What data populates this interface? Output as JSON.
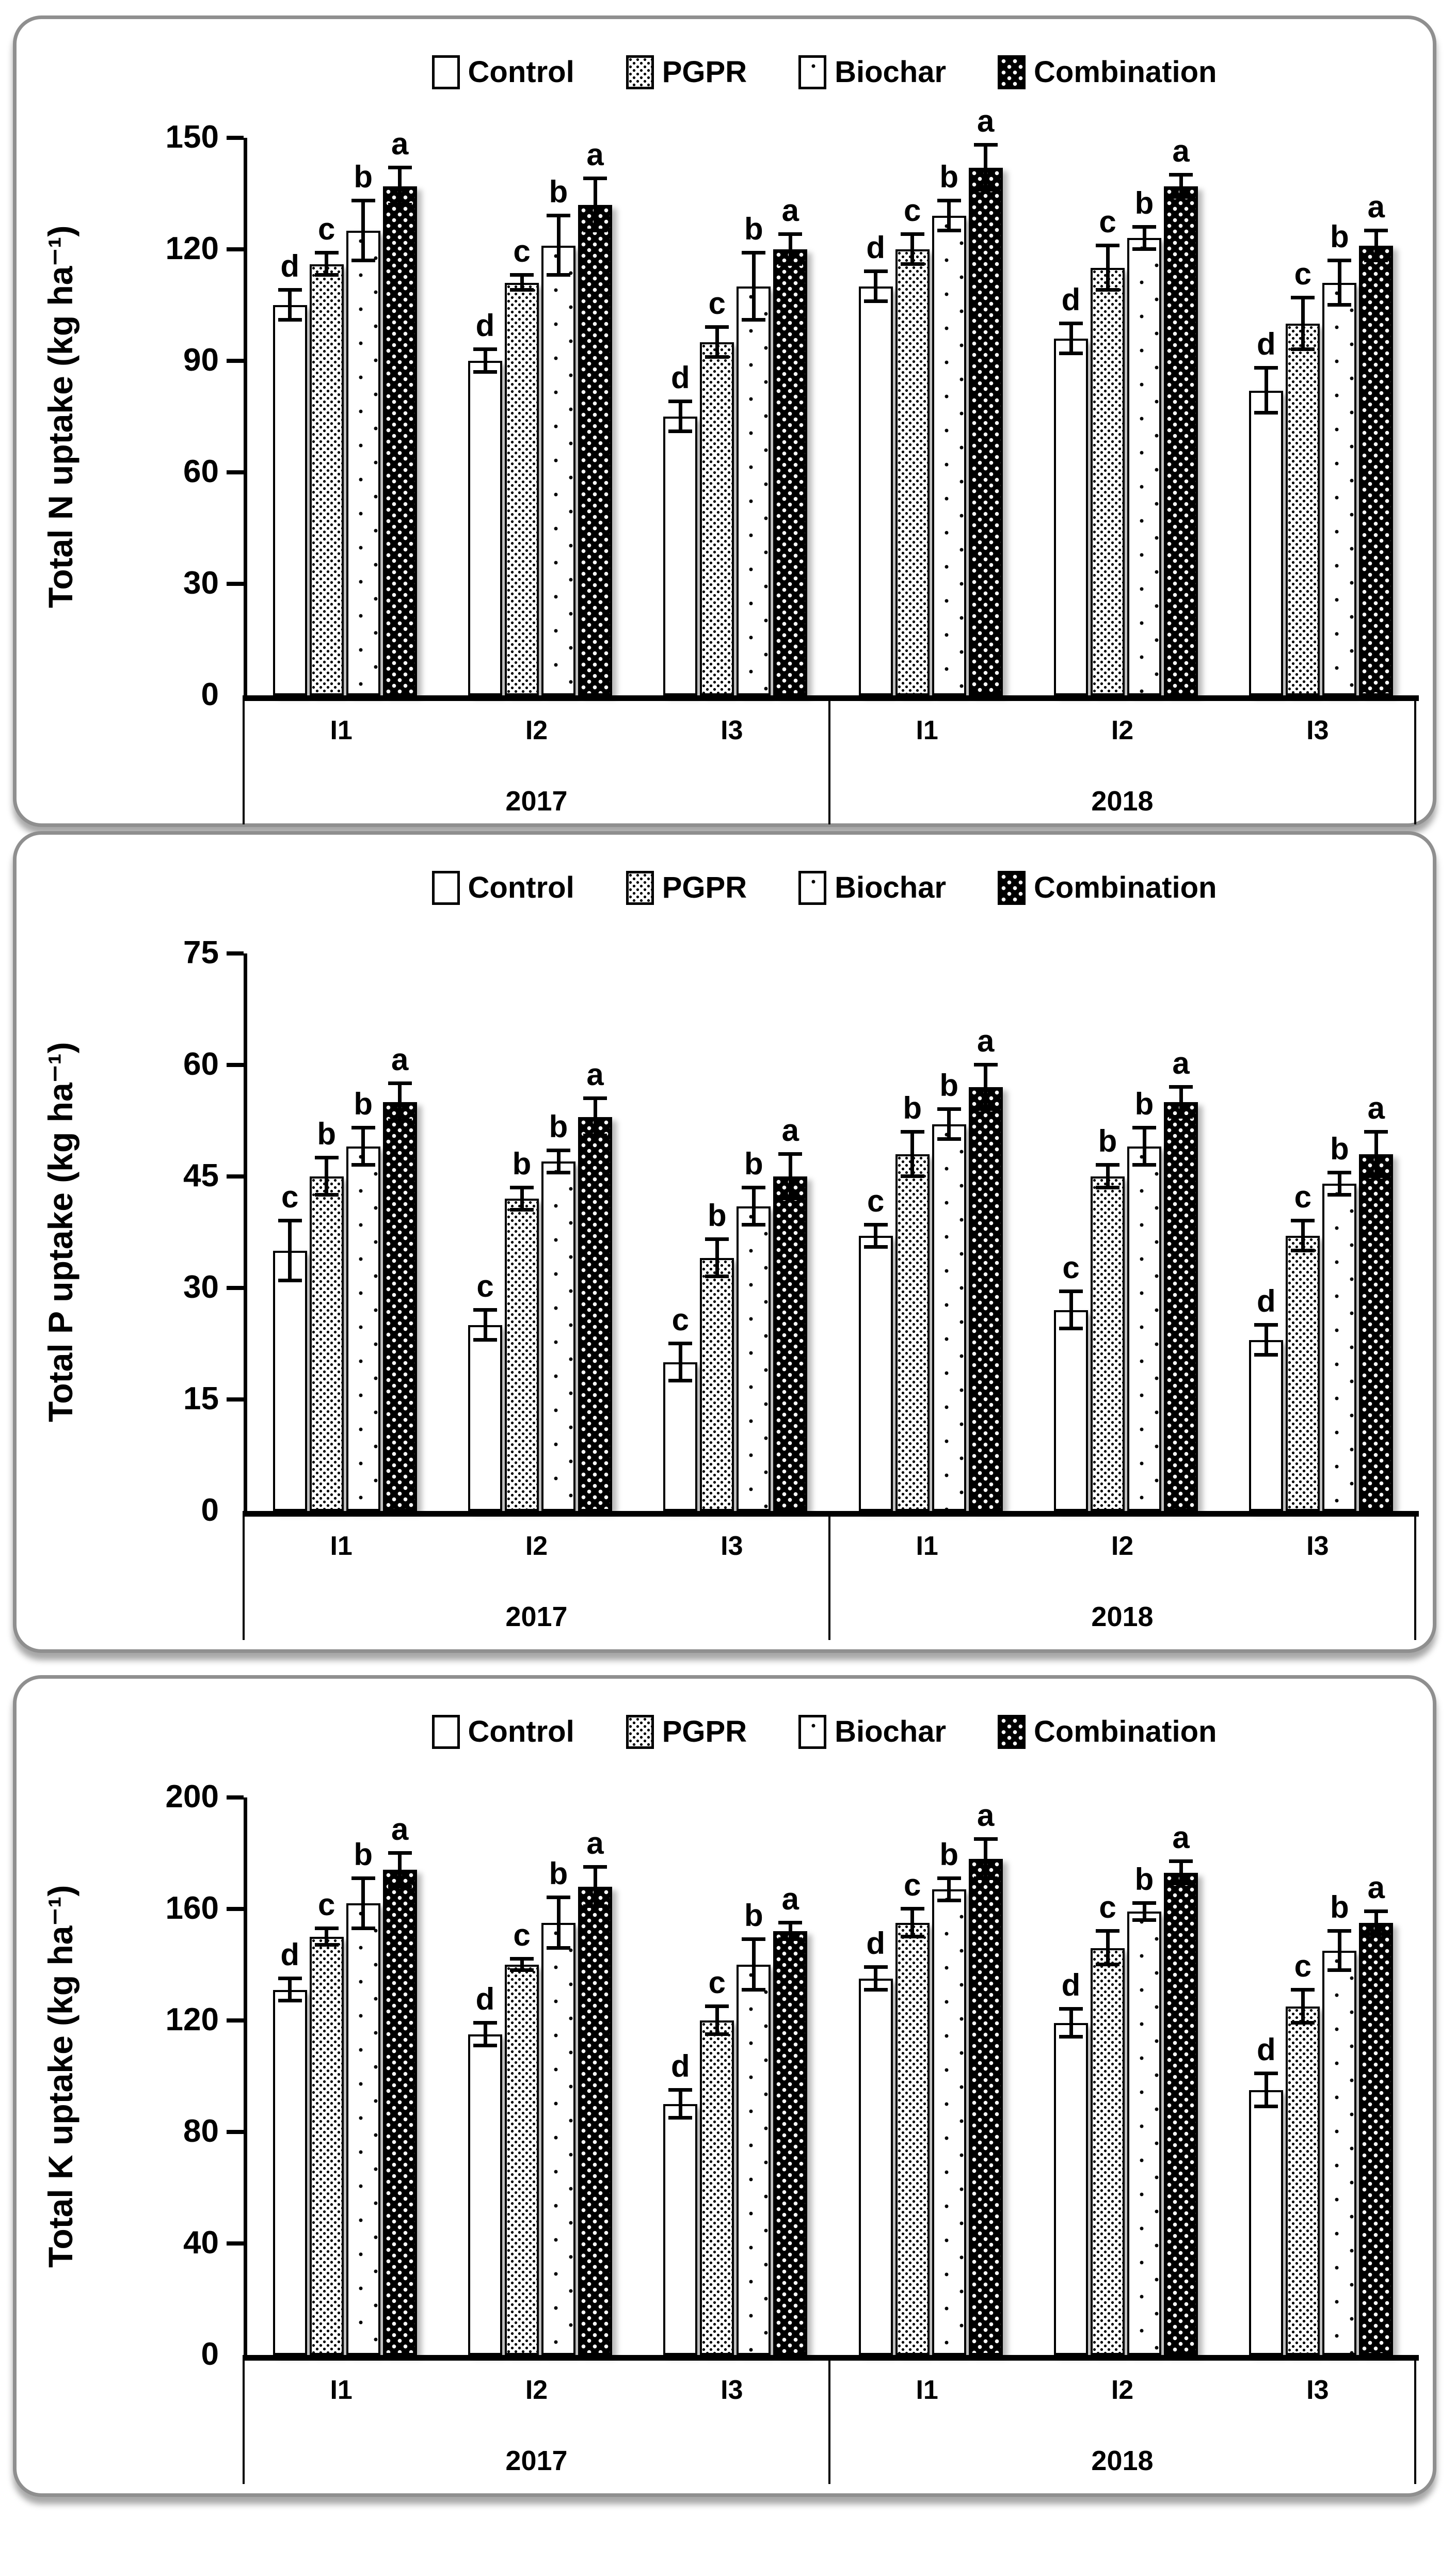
{
  "legend": {
    "items": [
      {
        "label": "Control",
        "pattern": "control",
        "icon": "control-swatch-icon"
      },
      {
        "label": "PGPR",
        "pattern": "pgpr",
        "icon": "pgpr-swatch-icon"
      },
      {
        "label": "Biochar",
        "pattern": "biochar",
        "icon": "biochar-swatch-icon"
      },
      {
        "label": "Combination",
        "pattern": "combination",
        "icon": "combination-swatch-icon"
      }
    ]
  },
  "chart_data": [
    {
      "type": "bar",
      "title": "",
      "ylabel": "Total N uptake (kg ha⁻¹)",
      "xlabel": "",
      "ylim": [
        0,
        150
      ],
      "yticks": [
        0,
        30,
        60,
        90,
        120,
        150
      ],
      "grid": false,
      "legend_position": "top-center",
      "series_names": [
        "Control",
        "PGPR",
        "Biochar",
        "Combination"
      ],
      "year_labels": [
        "2017",
        "2018"
      ],
      "groups": [
        {
          "year": "2017",
          "irrigation": "I1",
          "values": [
            105,
            116,
            125,
            137
          ],
          "errors": [
            4,
            3,
            8,
            5
          ],
          "letters": [
            "d",
            "c",
            "b",
            "a"
          ]
        },
        {
          "year": "2017",
          "irrigation": "I2",
          "values": [
            90,
            111,
            121,
            132
          ],
          "errors": [
            3,
            2,
            8,
            7
          ],
          "letters": [
            "d",
            "c",
            "b",
            "a"
          ]
        },
        {
          "year": "2017",
          "irrigation": "I3",
          "values": [
            75,
            95,
            110,
            120
          ],
          "errors": [
            4,
            4,
            9,
            4
          ],
          "letters": [
            "d",
            "c",
            "b",
            "a"
          ]
        },
        {
          "year": "2018",
          "irrigation": "I1",
          "values": [
            110,
            120,
            129,
            142
          ],
          "errors": [
            4,
            4,
            4,
            6
          ],
          "letters": [
            "d",
            "c",
            "b",
            "a"
          ]
        },
        {
          "year": "2018",
          "irrigation": "I2",
          "values": [
            96,
            115,
            123,
            137
          ],
          "errors": [
            4,
            6,
            3,
            3
          ],
          "letters": [
            "d",
            "c",
            "b",
            "a"
          ]
        },
        {
          "year": "2018",
          "irrigation": "I3",
          "values": [
            82,
            100,
            111,
            121
          ],
          "errors": [
            6,
            7,
            6,
            4
          ],
          "letters": [
            "d",
            "c",
            "b",
            "a"
          ]
        }
      ]
    },
    {
      "type": "bar",
      "title": "",
      "ylabel": "Total P uptake (kg ha⁻¹)",
      "xlabel": "",
      "ylim": [
        0,
        75
      ],
      "yticks": [
        0,
        15,
        30,
        45,
        60,
        75
      ],
      "grid": false,
      "legend_position": "top-center",
      "series_names": [
        "Control",
        "PGPR",
        "Biochar",
        "Combination"
      ],
      "year_labels": [
        "2017",
        "2018"
      ],
      "groups": [
        {
          "year": "2017",
          "irrigation": "I1",
          "values": [
            35,
            45,
            49,
            55
          ],
          "errors": [
            4,
            2.5,
            2.5,
            2.5
          ],
          "letters": [
            "c",
            "b",
            "b",
            "a"
          ]
        },
        {
          "year": "2017",
          "irrigation": "I2",
          "values": [
            25,
            42,
            47,
            53
          ],
          "errors": [
            2,
            1.5,
            1.5,
            2.5
          ],
          "letters": [
            "c",
            "b",
            "b",
            "a"
          ]
        },
        {
          "year": "2017",
          "irrigation": "I3",
          "values": [
            20,
            34,
            41,
            45
          ],
          "errors": [
            2.5,
            2.5,
            2.5,
            3
          ],
          "letters": [
            "c",
            "b",
            "b",
            "a"
          ]
        },
        {
          "year": "2018",
          "irrigation": "I1",
          "values": [
            37,
            48,
            52,
            57
          ],
          "errors": [
            1.5,
            3,
            2,
            3
          ],
          "letters": [
            "c",
            "b",
            "b",
            "a"
          ]
        },
        {
          "year": "2018",
          "irrigation": "I2",
          "values": [
            27,
            45,
            49,
            55
          ],
          "errors": [
            2.5,
            1.5,
            2.5,
            2
          ],
          "letters": [
            "c",
            "b",
            "b",
            "a"
          ]
        },
        {
          "year": "2018",
          "irrigation": "I3",
          "values": [
            23,
            37,
            44,
            48
          ],
          "errors": [
            2,
            2,
            1.5,
            3
          ],
          "letters": [
            "d",
            "c",
            "b",
            "a"
          ]
        }
      ]
    },
    {
      "type": "bar",
      "title": "",
      "ylabel": "Total K uptake (kg ha⁻¹)",
      "xlabel": "",
      "ylim": [
        0,
        200
      ],
      "yticks": [
        0,
        40,
        80,
        120,
        160,
        200
      ],
      "grid": false,
      "legend_position": "top-center",
      "series_names": [
        "Control",
        "PGPR",
        "Biochar",
        "Combination"
      ],
      "year_labels": [
        "2017",
        "2018"
      ],
      "groups": [
        {
          "year": "2017",
          "irrigation": "I1",
          "values": [
            131,
            150,
            162,
            174
          ],
          "errors": [
            4,
            3,
            9,
            6
          ],
          "letters": [
            "d",
            "c",
            "b",
            "a"
          ]
        },
        {
          "year": "2017",
          "irrigation": "I2",
          "values": [
            115,
            140,
            155,
            168
          ],
          "errors": [
            4,
            2,
            9,
            7
          ],
          "letters": [
            "d",
            "c",
            "b",
            "a"
          ]
        },
        {
          "year": "2017",
          "irrigation": "I3",
          "values": [
            90,
            120,
            140,
            152
          ],
          "errors": [
            5,
            5,
            9,
            3
          ],
          "letters": [
            "d",
            "c",
            "b",
            "a"
          ]
        },
        {
          "year": "2018",
          "irrigation": "I1",
          "values": [
            135,
            155,
            167,
            178
          ],
          "errors": [
            4,
            5,
            4,
            7
          ],
          "letters": [
            "d",
            "c",
            "b",
            "a"
          ]
        },
        {
          "year": "2018",
          "irrigation": "I2",
          "values": [
            119,
            146,
            159,
            173
          ],
          "errors": [
            5,
            6,
            3,
            4
          ],
          "letters": [
            "d",
            "c",
            "b",
            "a"
          ]
        },
        {
          "year": "2018",
          "irrigation": "I3",
          "values": [
            95,
            125,
            145,
            155
          ],
          "errors": [
            6,
            6,
            7,
            4
          ],
          "letters": [
            "d",
            "c",
            "b",
            "a"
          ]
        }
      ]
    }
  ]
}
